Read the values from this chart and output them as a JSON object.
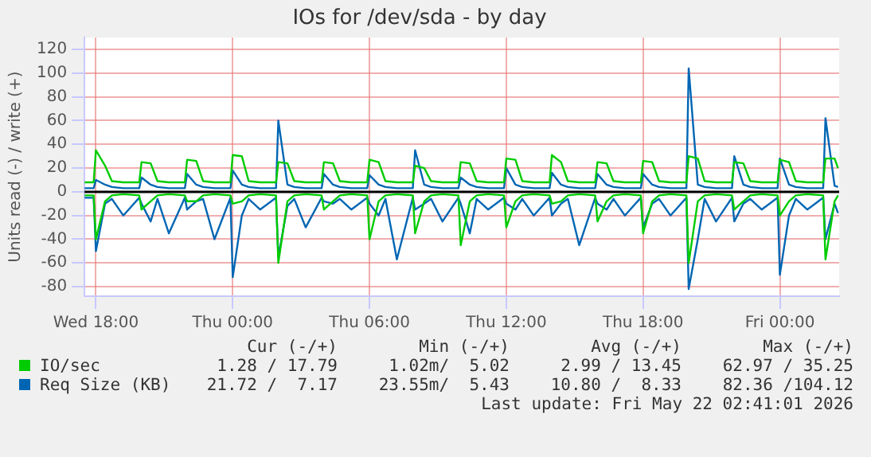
{
  "chart_data": {
    "type": "line",
    "title": "IOs for /dev/sda - by day",
    "ylabel": "Units read (-) / write (+)",
    "x": [
      "2026-05-20T17:30",
      "2026-05-20T17:54",
      "2026-05-20T18:00",
      "2026-05-20T18:24",
      "2026-05-20T18:42",
      "2026-05-20T19:12",
      "2026-05-20T19:54",
      "2026-05-20T20:00",
      "2026-05-20T20:24",
      "2026-05-20T20:42",
      "2026-05-20T21:12",
      "2026-05-20T21:54",
      "2026-05-20T22:00",
      "2026-05-20T22:24",
      "2026-05-20T22:42",
      "2026-05-20T23:12",
      "2026-05-20T23:54",
      "2026-05-21T00:00",
      "2026-05-21T00:24",
      "2026-05-21T00:42",
      "2026-05-21T01:12",
      "2026-05-21T01:54",
      "2026-05-21T02:00",
      "2026-05-21T02:24",
      "2026-05-21T02:42",
      "2026-05-21T03:12",
      "2026-05-21T03:54",
      "2026-05-21T04:00",
      "2026-05-21T04:24",
      "2026-05-21T04:42",
      "2026-05-21T05:12",
      "2026-05-21T05:54",
      "2026-05-21T06:00",
      "2026-05-21T06:24",
      "2026-05-21T06:42",
      "2026-05-21T07:12",
      "2026-05-21T07:54",
      "2026-05-21T08:00",
      "2026-05-21T08:24",
      "2026-05-21T08:42",
      "2026-05-21T09:12",
      "2026-05-21T09:54",
      "2026-05-21T10:00",
      "2026-05-21T10:24",
      "2026-05-21T10:42",
      "2026-05-21T11:12",
      "2026-05-21T11:54",
      "2026-05-21T12:00",
      "2026-05-21T12:24",
      "2026-05-21T12:42",
      "2026-05-21T13:12",
      "2026-05-21T13:54",
      "2026-05-21T14:00",
      "2026-05-21T14:24",
      "2026-05-21T14:42",
      "2026-05-21T15:12",
      "2026-05-21T15:54",
      "2026-05-21T16:00",
      "2026-05-21T16:24",
      "2026-05-21T16:42",
      "2026-05-21T17:12",
      "2026-05-21T17:54",
      "2026-05-21T18:00",
      "2026-05-21T18:24",
      "2026-05-21T18:42",
      "2026-05-21T19:12",
      "2026-05-21T19:54",
      "2026-05-21T20:00",
      "2026-05-21T20:24",
      "2026-05-21T20:42",
      "2026-05-21T21:12",
      "2026-05-21T21:54",
      "2026-05-21T22:00",
      "2026-05-21T22:24",
      "2026-05-21T22:42",
      "2026-05-21T23:12",
      "2026-05-21T23:54",
      "2026-05-22T00:00",
      "2026-05-22T00:24",
      "2026-05-22T00:42",
      "2026-05-22T01:12",
      "2026-05-22T01:54",
      "2026-05-22T02:00",
      "2026-05-22T02:24",
      "2026-05-22T02:33"
    ],
    "series": [
      {
        "name": "IO/sec",
        "color": "#00cc00",
        "values": [
          8,
          8,
          35,
          22,
          9,
          8,
          8,
          25,
          24,
          9,
          8,
          8,
          27,
          26,
          9,
          8,
          8,
          31,
          30,
          9,
          8,
          8,
          25,
          24,
          9,
          8,
          8,
          25,
          24,
          9,
          8,
          8,
          27,
          25,
          9,
          8,
          8,
          22,
          20,
          9,
          8,
          8,
          25,
          24,
          9,
          8,
          8,
          28,
          27,
          9,
          8,
          8,
          31,
          25,
          9,
          8,
          8,
          25,
          24,
          9,
          8,
          8,
          26,
          25,
          9,
          8,
          8,
          30,
          28,
          9,
          8,
          8,
          25,
          24,
          9,
          8,
          8,
          27,
          25,
          9,
          8,
          8,
          28,
          28,
          20
        ]
      },
      {
        "color": "#00cc00",
        "values": [
          -3,
          -3,
          -40,
          -8,
          -3,
          -2,
          -3,
          -15,
          -8,
          -3,
          -2,
          -3,
          -8,
          -8,
          -3,
          -2,
          -3,
          -10,
          -8,
          -3,
          -2,
          -3,
          -60,
          -8,
          -3,
          -2,
          -3,
          -15,
          -8,
          -3,
          -2,
          -3,
          -40,
          -8,
          -3,
          -2,
          -3,
          -35,
          -8,
          -3,
          -2,
          -3,
          -45,
          -8,
          -3,
          -2,
          -3,
          -30,
          -8,
          -3,
          -2,
          -3,
          -10,
          -8,
          -3,
          -2,
          -3,
          -25,
          -8,
          -3,
          -2,
          -3,
          -35,
          -8,
          -3,
          -2,
          -3,
          -60,
          -8,
          -3,
          -2,
          -3,
          -15,
          -8,
          -3,
          -2,
          -3,
          -20,
          -8,
          -3,
          -2,
          -3,
          -57,
          -8,
          -3
        ]
      },
      {
        "name": "Req Size (KB)",
        "color": "#0066b3",
        "values": [
          3,
          3,
          10,
          6,
          4,
          3,
          3,
          12,
          6,
          4,
          3,
          3,
          15,
          6,
          4,
          3,
          3,
          18,
          6,
          4,
          3,
          3,
          60,
          6,
          4,
          3,
          3,
          15,
          6,
          4,
          3,
          3,
          14,
          6,
          4,
          3,
          3,
          35,
          6,
          4,
          3,
          3,
          12,
          6,
          4,
          3,
          3,
          20,
          6,
          4,
          3,
          3,
          16,
          6,
          4,
          3,
          3,
          15,
          6,
          4,
          3,
          3,
          15,
          6,
          4,
          3,
          3,
          104,
          6,
          4,
          3,
          3,
          30,
          6,
          4,
          3,
          3,
          28,
          6,
          4,
          3,
          3,
          62,
          5,
          4
        ]
      },
      {
        "color": "#0066b3",
        "values": [
          -5,
          -5,
          -50,
          -10,
          -6,
          -20,
          -5,
          -10,
          -25,
          -6,
          -35,
          -5,
          -15,
          -8,
          -6,
          -40,
          -5,
          -72,
          -20,
          -6,
          -15,
          -5,
          -55,
          -12,
          -6,
          -30,
          -5,
          -8,
          -10,
          -6,
          -15,
          -5,
          -10,
          -20,
          -6,
          -57,
          -5,
          -15,
          -10,
          -6,
          -25,
          -5,
          -10,
          -35,
          -6,
          -15,
          -5,
          -10,
          -15,
          -6,
          -20,
          -5,
          -20,
          -10,
          -6,
          -45,
          -5,
          -10,
          -15,
          -6,
          -20,
          -5,
          -30,
          -10,
          -6,
          -20,
          -5,
          -82,
          -40,
          -6,
          -25,
          -5,
          -25,
          -10,
          -6,
          -15,
          -5,
          -70,
          -20,
          -6,
          -15,
          -5,
          -40,
          -10,
          -18
        ]
      }
    ],
    "xlim": [
      "2026-05-20T17:30",
      "2026-05-22T02:36"
    ],
    "xticks": [
      {
        "value": "2026-05-20T18:00",
        "label": "Wed 18:00"
      },
      {
        "value": "2026-05-21T00:00",
        "label": "Thu 00:00"
      },
      {
        "value": "2026-05-21T06:00",
        "label": "Thu 06:00"
      },
      {
        "value": "2026-05-21T12:00",
        "label": "Thu 12:00"
      },
      {
        "value": "2026-05-21T18:00",
        "label": "Thu 18:00"
      },
      {
        "value": "2026-05-22T00:00",
        "label": "Fri 00:00"
      }
    ],
    "ylim": [
      -88,
      130
    ],
    "yticks": [
      -80,
      -60,
      -40,
      -20,
      0,
      20,
      40,
      60,
      80,
      100,
      120
    ],
    "grid": true,
    "legend": "bottom",
    "marker": "none",
    "line_style": "solid",
    "ref_lines": [
      {
        "axis": "y",
        "value": 0,
        "color": "#000000"
      }
    ],
    "annotations": [
      "Cur (-/+)",
      "Min (-/+)",
      "Avg (-/+)",
      "Max (-/+)",
      "1.28 / 17.79",
      "1.02m/  5.02",
      "2.99 / 13.45",
      "62.97 / 35.25",
      "21.72 /  7.17",
      "23.55m/  5.43",
      "10.80 /  8.33",
      "82.36 /104.12",
      "Last update: Fri May 22 02:41:01 2026"
    ]
  }
}
